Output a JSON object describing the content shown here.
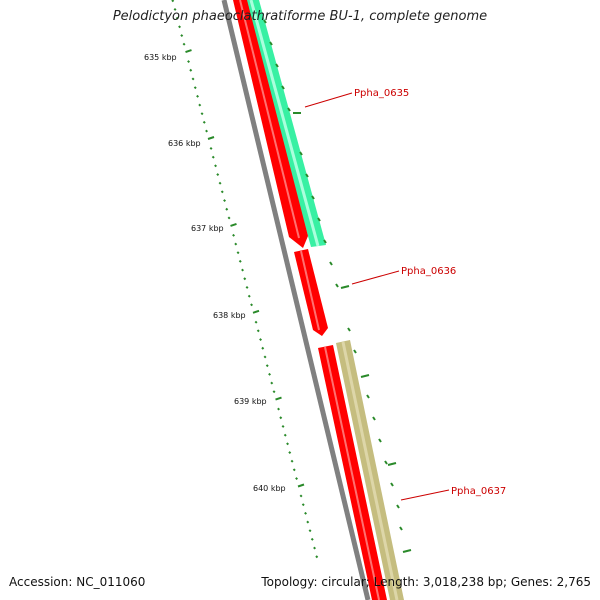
{
  "title": "Pelodictyon phaeoclathratiforme BU-1, complete genome",
  "footer": {
    "accession": "Accession: NC_011060",
    "summary": "Topology: circular; Length: 3,018,238 bp; Genes: 2,765"
  },
  "ruler": {
    "ticks": [
      "635 kbp",
      "636 kbp",
      "637 kbp",
      "638 kbp",
      "639 kbp",
      "640 kbp"
    ],
    "color": "#2a8a2a"
  },
  "genes": [
    {
      "label": "Ppha_0635",
      "color": "#ff0000"
    },
    {
      "label": "Ppha_0636",
      "color": "#ff0000"
    },
    {
      "label": "Ppha_0637",
      "color": "#ff0000"
    }
  ],
  "colors": {
    "backbone": "#808080",
    "cds": "#ff0000",
    "feature_teal": "#22ee99",
    "feature_khaki": "#c2b978",
    "label": "#cc0000"
  }
}
